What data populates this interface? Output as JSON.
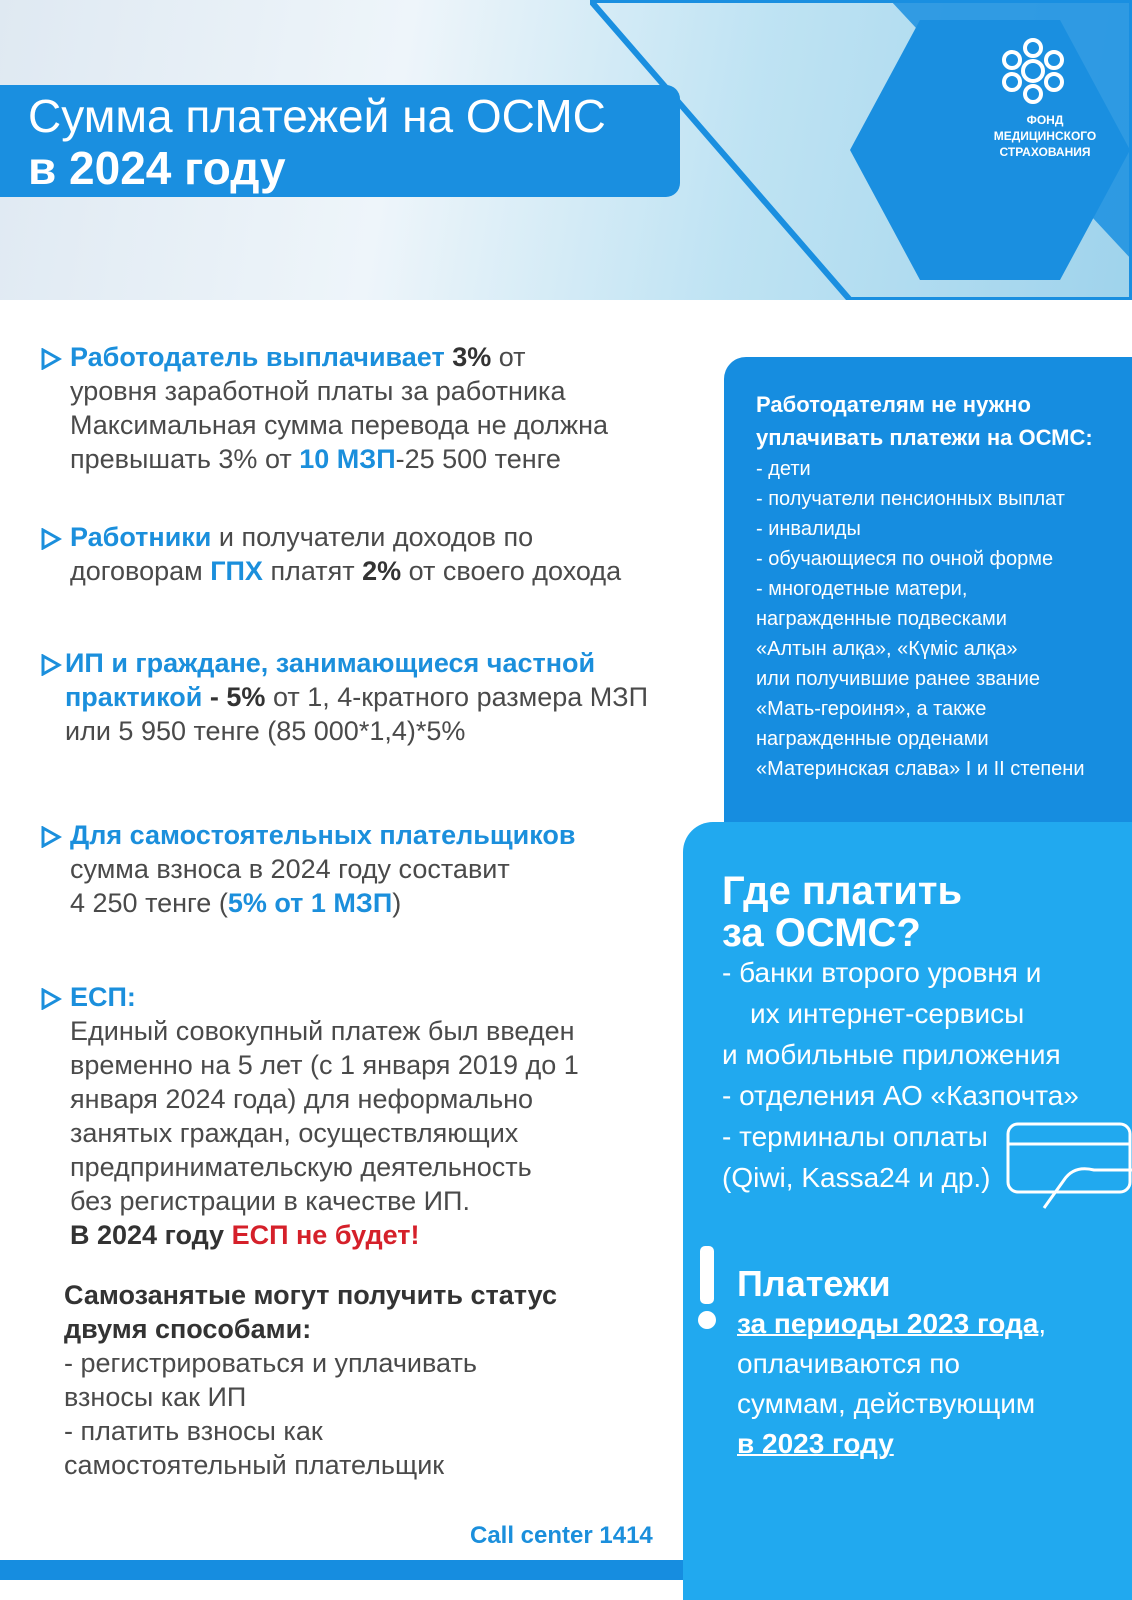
{
  "header": {
    "title_line1": "Сумма платежей на ОСМС",
    "title_line2": "в 2024 году",
    "logo_lines": [
      "ФОНД",
      "МЕДИЦИНСКОГО",
      "СТРАХОВАНИЯ"
    ]
  },
  "items": [
    [
      "Работодатель выплачивает ",
      "3%",
      " от",
      "уровня заработной платы за работника",
      "Максимальная сумма перевода не должна",
      "превышать 3% от ",
      "10 МЗП",
      "-25 500 тенге"
    ],
    [
      "Работники",
      " и получатели доходов по",
      "договорам ",
      "ГПХ",
      " платят ",
      "2%",
      " от своего дохода"
    ],
    [
      "ИП и граждане, занимающиеся частной",
      "практикой",
      " - ",
      "5%",
      " от 1, 4-кратного размера МЗП",
      "или 5 950 тенге (85 000*1,4)*5%"
    ],
    [
      "Для самостоятельных плательщиков",
      "сумма взноса в 2024 году составит",
      "4 250 тенге (",
      "5% от 1 МЗП",
      ")"
    ],
    [
      "ЕСП:",
      "Единый совокупный платеж был введен",
      "временно на 5 лет (с 1 января 2019 до 1",
      "января 2024 года) для неформально",
      "занятых граждан, осуществляющих",
      "предпринимательскую деятельность",
      "без регистрации в качестве ИП.",
      "В 2024 году ",
      "ЕСП не будет!"
    ]
  ],
  "self_employed": {
    "title": [
      "Самозанятые могут получить статус",
      "двумя способами:"
    ],
    "lines": [
      "- регистрироваться и уплачивать",
      "взносы как ИП",
      "- платить взносы как",
      "самостоятельный плательщик"
    ]
  },
  "call_center": "Call center 1414",
  "exempt_panel": {
    "title": [
      "Работодателям не нужно",
      "уплачивать платежи на ОСМС:"
    ],
    "lines": [
      "- дети",
      "- получатели пенсионных выплат",
      "- инвалиды",
      "- обучающиеся по очной форме",
      "- многодетные матери,",
      "награжденные подвесками",
      "«Алтын алқа», «Күміс алқа»",
      "или получившие ранее звание",
      "«Мать-героиня», а также",
      "награжденные орденами",
      "«Материнская слава» I и II степени"
    ]
  },
  "where_panel": {
    "title": [
      "Где платить",
      "за ОСМС?"
    ],
    "lines": [
      "- банки второго уровня и",
      "их интернет-сервисы",
      "и  мобильные приложения",
      "- отделения АО «Казпочта»",
      "- терминалы оплаты",
      "(Qiwi, Kassa24 и др.)"
    ]
  },
  "payments_panel": {
    "title": "Платежи",
    "parts": [
      "за периоды 2023 года",
      ",",
      "оплачиваются по",
      "суммам, действующим",
      "в 2023 году"
    ]
  }
}
